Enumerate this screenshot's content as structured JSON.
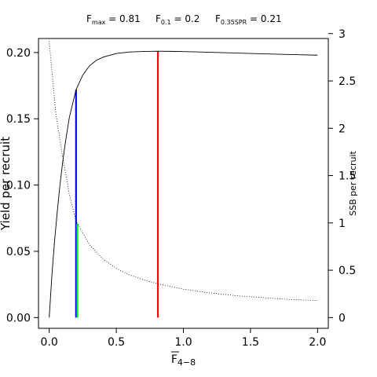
{
  "chart_data": {
    "type": "line",
    "title_parts": [
      {
        "main": "F",
        "sub": "max",
        "rest": " = 0.81"
      },
      {
        "main": "F",
        "sub": "0.1",
        "rest": " = 0.2"
      },
      {
        "main": "F",
        "sub": "0.35SPR",
        "rest": " = 0.21"
      }
    ],
    "xlabel": {
      "main": "F",
      "sub": "4−8"
    },
    "ylabel": "Yield per recruit",
    "y2label": "SSB per recruit",
    "xlim": [
      -0.08,
      2.08
    ],
    "ylim": [
      -0.0081,
      0.2106
    ],
    "y2lim": [
      -0.1134,
      2.9484
    ],
    "xticks": [
      0.0,
      0.5,
      1.0,
      1.5,
      2.0
    ],
    "xtick_labels": [
      "0.0",
      "0.5",
      "1.0",
      "1.5",
      "2.0"
    ],
    "yticks": [
      0.0,
      0.05,
      0.1,
      0.15,
      0.2
    ],
    "ytick_labels": [
      "0.00",
      "0.05",
      "0.10",
      "0.15",
      "0.20"
    ],
    "y2ticks": [
      0,
      0.5,
      1,
      1.5,
      2,
      2.5,
      3
    ],
    "y2tick_labels": [
      "0",
      "0.5",
      "1",
      "1.5",
      "2",
      "2.5",
      "3"
    ],
    "series": [
      {
        "axis": "left",
        "style": "solid",
        "color": "#000000",
        "x": [
          0,
          0.02,
          0.04,
          0.06,
          0.08,
          0.1,
          0.12,
          0.15,
          0.2,
          0.25,
          0.3,
          0.35,
          0.4,
          0.5,
          0.6,
          0.7,
          0.8,
          0.9,
          1.0,
          1.2,
          1.4,
          1.6,
          1.8,
          2.0
        ],
        "y": [
          0,
          0.032,
          0.058,
          0.08,
          0.1,
          0.117,
          0.132,
          0.151,
          0.172,
          0.183,
          0.19,
          0.194,
          0.1965,
          0.1993,
          0.2004,
          0.2008,
          0.201,
          0.2009,
          0.2007,
          0.2002,
          0.1996,
          0.199,
          0.1985,
          0.198
        ]
      },
      {
        "axis": "right",
        "style": "dotted",
        "color": "#000000",
        "x": [
          0,
          0.02,
          0.05,
          0.1,
          0.15,
          0.2,
          0.3,
          0.4,
          0.5,
          0.6,
          0.7,
          0.8,
          1.0,
          1.2,
          1.4,
          1.6,
          1.8,
          2.0
        ],
        "y": [
          2.92,
          2.6,
          2.15,
          1.7,
          1.3,
          1.02,
          0.77,
          0.62,
          0.52,
          0.45,
          0.4,
          0.36,
          0.3,
          0.26,
          0.23,
          0.21,
          0.19,
          0.18
        ]
      }
    ],
    "reference_lines": [
      {
        "x": 0.2,
        "y_from": 0,
        "y_to": 0.172,
        "axis": "left",
        "color": "#0000ff"
      },
      {
        "x": 0.21,
        "y_from": 0,
        "y_to": 0.99,
        "axis": "right",
        "color": "#00ff00"
      },
      {
        "x": 0.81,
        "y_from": 0,
        "y_to": 0.201,
        "axis": "left",
        "color": "#ff0000"
      }
    ]
  }
}
